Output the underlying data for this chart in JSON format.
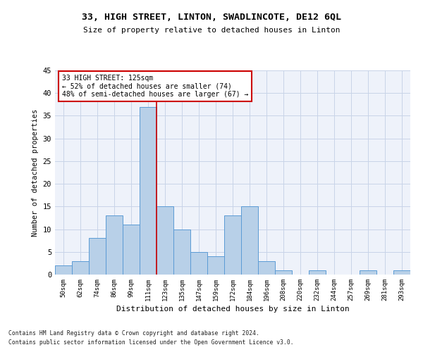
{
  "title1": "33, HIGH STREET, LINTON, SWADLINCOTE, DE12 6QL",
  "title2": "Size of property relative to detached houses in Linton",
  "xlabel": "Distribution of detached houses by size in Linton",
  "ylabel": "Number of detached properties",
  "bar_labels": [
    "50sqm",
    "62sqm",
    "74sqm",
    "86sqm",
    "99sqm",
    "111sqm",
    "123sqm",
    "135sqm",
    "147sqm",
    "159sqm",
    "172sqm",
    "184sqm",
    "196sqm",
    "208sqm",
    "220sqm",
    "232sqm",
    "244sqm",
    "257sqm",
    "269sqm",
    "281sqm",
    "293sqm"
  ],
  "bar_values": [
    2,
    3,
    8,
    13,
    11,
    37,
    15,
    10,
    5,
    4,
    13,
    15,
    3,
    1,
    0,
    1,
    0,
    0,
    1,
    0,
    1
  ],
  "bar_color": "#b8d0e8",
  "bar_edge_color": "#5b9bd5",
  "vline_x": 5.5,
  "vline_color": "#cc0000",
  "annotation_title": "33 HIGH STREET: 125sqm",
  "annotation_line1": "← 52% of detached houses are smaller (74)",
  "annotation_line2": "48% of semi-detached houses are larger (67) →",
  "annotation_box_color": "#cc0000",
  "ylim": [
    0,
    45
  ],
  "yticks": [
    0,
    5,
    10,
    15,
    20,
    25,
    30,
    35,
    40,
    45
  ],
  "footnote1": "Contains HM Land Registry data © Crown copyright and database right 2024.",
  "footnote2": "Contains public sector information licensed under the Open Government Licence v3.0.",
  "bg_color": "#eef2fa",
  "grid_color": "#c8d4e8"
}
